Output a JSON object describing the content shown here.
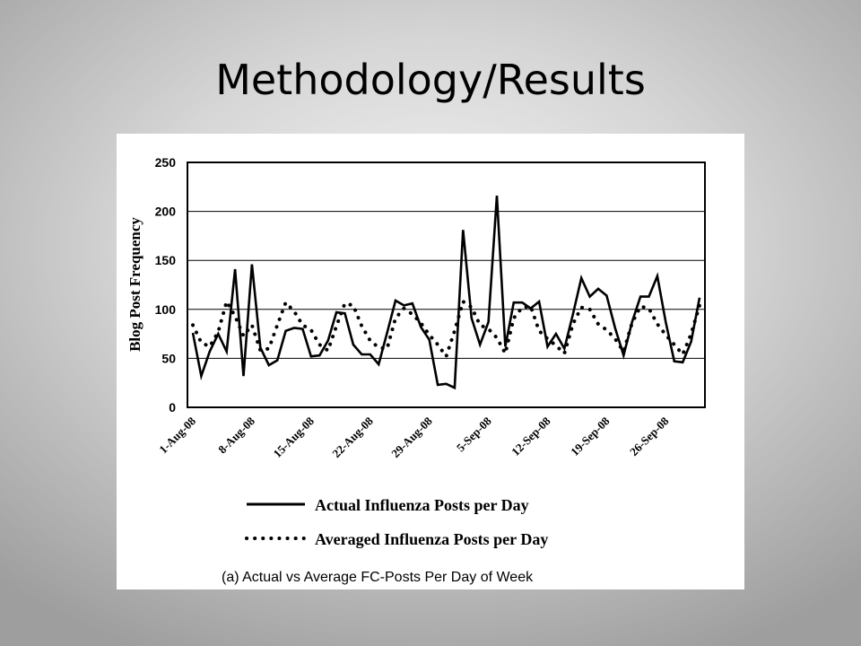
{
  "slide": {
    "title": "Methodology/Results"
  },
  "chart_data": {
    "type": "line",
    "caption": "(a) Actual vs Average FC-Posts Per Day of Week",
    "ylabel": "Blog Post Frequency",
    "ylim": [
      0,
      250
    ],
    "yticks": [
      0,
      50,
      100,
      150,
      200,
      250
    ],
    "grid": true,
    "legend_position": "bottom",
    "x_tick_labels": [
      "1-Aug-08",
      "8-Aug-08",
      "15-Aug-08",
      "22-Aug-08",
      "29-Aug-08",
      "5-Sep-08",
      "12-Sep-08",
      "19-Sep-08",
      "26-Sep-08"
    ],
    "series": [
      {
        "name": "Actual Influenza Posts per Day",
        "style": "solid",
        "values": [
          76,
          32,
          57,
          75,
          57,
          141,
          32,
          146,
          61,
          43,
          48,
          78,
          81,
          80,
          52,
          53,
          68,
          97,
          96,
          64,
          54,
          54,
          44,
          76,
          109,
          104,
          106,
          82,
          69,
          23,
          24,
          20,
          181,
          91,
          64,
          87,
          216,
          62,
          107,
          107,
          101,
          108,
          62,
          75,
          60,
          95,
          132,
          113,
          121,
          114,
          81,
          53,
          87,
          113,
          113,
          134,
          87,
          47,
          46,
          67,
          112
        ]
      },
      {
        "name": "Averaged Influenza Posts per Day",
        "style": "dotted",
        "values": [
          84,
          66,
          62,
          77,
          108,
          93,
          73,
          84,
          58,
          60,
          84,
          107,
          98,
          84,
          79,
          64,
          58,
          83,
          106,
          104,
          83,
          68,
          61,
          60,
          91,
          101,
          95,
          86,
          74,
          64,
          52,
          78,
          108,
          102,
          84,
          80,
          71,
          55,
          91,
          102,
          103,
          78,
          70,
          63,
          55,
          85,
          102,
          100,
          85,
          79,
          70,
          57,
          86,
          103,
          101,
          85,
          74,
          64,
          54,
          75,
          104
        ]
      }
    ]
  }
}
